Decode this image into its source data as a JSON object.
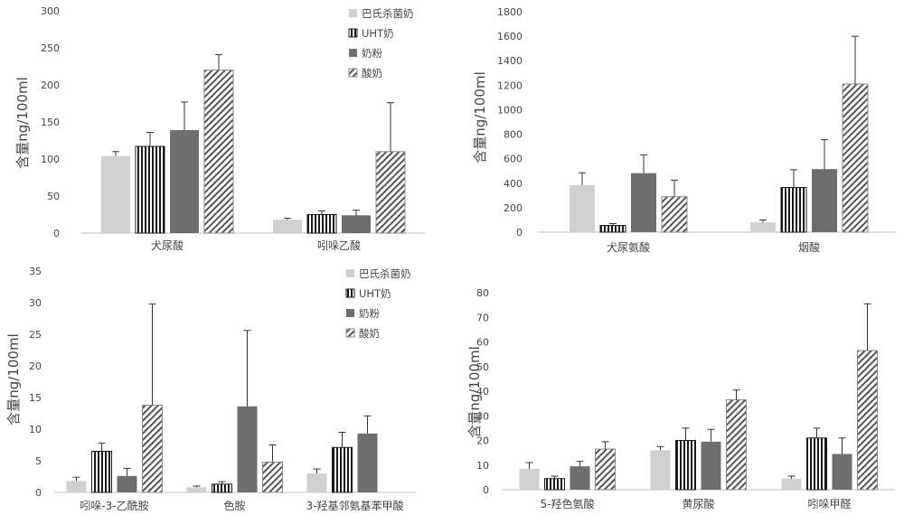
{
  "chart_data": [
    {
      "type": "bar",
      "ylabel": "含量ng/100ml",
      "ylim": [
        0,
        300
      ],
      "yticks": [
        0,
        50,
        100,
        150,
        200,
        250,
        300
      ],
      "categories": [
        "犬尿酸",
        "吲哚乙酸"
      ],
      "legend": "top-right",
      "series": [
        {
          "name": "巴氏杀菌奶",
          "values": [
            104,
            18
          ],
          "errors": [
            6,
            2
          ]
        },
        {
          "name": "UHT奶",
          "values": [
            117,
            25
          ],
          "errors": [
            19,
            5
          ]
        },
        {
          "name": "奶粉",
          "values": [
            139,
            24
          ],
          "errors": [
            38,
            7
          ]
        },
        {
          "name": "酸奶",
          "values": [
            220,
            110
          ],
          "errors": [
            21,
            66
          ]
        }
      ]
    },
    {
      "type": "bar",
      "ylabel": "含量ng/100ml",
      "ylim": [
        0,
        1800
      ],
      "yticks": [
        0,
        200,
        400,
        600,
        800,
        1000,
        1200,
        1400,
        1600,
        1800
      ],
      "categories": [
        "犬尿氨酸",
        "烟酸"
      ],
      "series": [
        {
          "name": "巴氏杀菌奶",
          "values": [
            385,
            80
          ],
          "errors": [
            100,
            20
          ]
        },
        {
          "name": "UHT奶",
          "values": [
            55,
            365
          ],
          "errors": [
            15,
            145
          ]
        },
        {
          "name": "奶粉",
          "values": [
            482,
            515
          ],
          "errors": [
            150,
            240
          ]
        },
        {
          "name": "酸奶",
          "values": [
            290,
            1210
          ],
          "errors": [
            135,
            390
          ]
        }
      ]
    },
    {
      "type": "bar",
      "ylabel": "含量ng/100ml",
      "ylim": [
        0,
        35
      ],
      "yticks": [
        0,
        5,
        10,
        15,
        20,
        25,
        30,
        35
      ],
      "categories": [
        "吲哚-3-乙酰胺",
        "色胺",
        "3-羟基邻氨基苯甲酸"
      ],
      "legend": "top-right",
      "series": [
        {
          "name": "巴氏杀菌奶",
          "values": [
            1.8,
            0.8,
            3.0
          ],
          "errors": [
            0.6,
            0.2,
            0.7
          ]
        },
        {
          "name": "UHT奶",
          "values": [
            6.5,
            1.3,
            7.1
          ],
          "errors": [
            1.3,
            0.4,
            2.4
          ]
        },
        {
          "name": "奶粉",
          "values": [
            2.6,
            13.6,
            9.3
          ],
          "errors": [
            1.2,
            12.0,
            2.8
          ]
        },
        {
          "name": "酸奶",
          "values": [
            13.8,
            4.8,
            null
          ],
          "errors": [
            16.0,
            2.7,
            null
          ]
        }
      ]
    },
    {
      "type": "bar",
      "ylabel": "含量ng/100ml",
      "ylim": [
        0,
        80
      ],
      "yticks": [
        0,
        10,
        20,
        30,
        40,
        50,
        60,
        70,
        80
      ],
      "categories": [
        "5-羟色氨酸",
        "黄尿酸",
        "吲哚甲醛"
      ],
      "series": [
        {
          "name": "巴氏杀菌奶",
          "values": [
            8.5,
            16.0,
            4.5
          ],
          "errors": [
            2.5,
            1.5,
            1.0
          ]
        },
        {
          "name": "UHT奶",
          "values": [
            4.5,
            20.0,
            21.0
          ],
          "errors": [
            1.0,
            5.0,
            4.0
          ]
        },
        {
          "name": "奶粉",
          "values": [
            9.5,
            19.5,
            14.5
          ],
          "errors": [
            2.0,
            5.0,
            6.5
          ]
        },
        {
          "name": "酸奶",
          "values": [
            16.5,
            36.5,
            56.5
          ],
          "errors": [
            3.0,
            4.0,
            19.0
          ]
        }
      ]
    }
  ]
}
